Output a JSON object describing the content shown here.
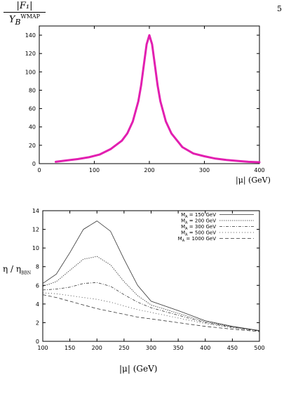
{
  "page_number": "5",
  "chart_data": [
    {
      "type": "line",
      "ylabel_numerator": "|F₁|",
      "ylabel_denominator": "Y",
      "ylabel_den_sub": "B",
      "ylabel_den_sup": "WMAP",
      "xlabel": "|μ| (GeV)",
      "xlim": [
        0,
        400
      ],
      "ylim": [
        0,
        150
      ],
      "xticks": [
        0,
        100,
        200,
        300,
        400
      ],
      "yticks": [
        0,
        20,
        40,
        60,
        80,
        100,
        120,
        140
      ],
      "grid": false,
      "legend": "none",
      "color": "#e21fb0",
      "series": [
        {
          "x": [
            30,
            50,
            70,
            90,
            110,
            130,
            150,
            160,
            170,
            180,
            185,
            190,
            195,
            200,
            205,
            210,
            215,
            220,
            230,
            240,
            260,
            280,
            300,
            320,
            340,
            360,
            380,
            400
          ],
          "y": [
            2,
            3.5,
            5,
            7,
            10,
            16,
            25,
            33,
            46,
            68,
            85,
            108,
            130,
            140,
            130,
            108,
            85,
            68,
            46,
            33,
            18,
            11,
            8,
            5.5,
            4,
            3,
            2,
            1.5
          ]
        }
      ]
    },
    {
      "type": "line",
      "ylabel_main": "η / η",
      "ylabel_sub": "BBN",
      "xlabel": "|μ|  (GeV)",
      "xlim": [
        100,
        500
      ],
      "ylim": [
        0,
        14
      ],
      "xticks": [
        100,
        150,
        200,
        250,
        300,
        350,
        400,
        450,
        500
      ],
      "yticks": [
        0,
        2,
        4,
        6,
        8,
        10,
        12,
        14
      ],
      "grid": false,
      "legend": "top-right",
      "series": [
        {
          "name_main": "M",
          "name_sub": "A",
          "name_rest": " = 150 GeV",
          "x": [
            100,
            125,
            150,
            175,
            200,
            225,
            250,
            275,
            300,
            350,
            400,
            450,
            500
          ],
          "y": [
            6.2,
            7.2,
            9.5,
            12.0,
            12.9,
            11.8,
            8.8,
            6.0,
            4.3,
            3.3,
            2.2,
            1.6,
            1.15
          ]
        },
        {
          "name_main": "M",
          "name_sub": "A",
          "name_rest": " = 200 GeV",
          "x": [
            100,
            125,
            150,
            175,
            200,
            225,
            250,
            275,
            300,
            350,
            400,
            450,
            500
          ],
          "y": [
            5.9,
            6.4,
            7.6,
            8.8,
            9.1,
            8.2,
            6.4,
            4.9,
            3.9,
            3.0,
            2.1,
            1.55,
            1.15
          ]
        },
        {
          "name_main": "M",
          "name_sub": "A",
          "name_rest": " = 300 GeV",
          "x": [
            100,
            125,
            150,
            175,
            200,
            225,
            250,
            275,
            300,
            350,
            400,
            450,
            500
          ],
          "y": [
            5.5,
            5.6,
            5.8,
            6.2,
            6.3,
            5.9,
            5.0,
            4.2,
            3.6,
            2.8,
            2.0,
            1.5,
            1.1
          ]
        },
        {
          "name_main": "M",
          "name_sub": "A",
          "name_rest": " = 500 GeV",
          "x": [
            100,
            125,
            150,
            175,
            200,
            225,
            250,
            275,
            300,
            350,
            400,
            450,
            500
          ],
          "y": [
            5.2,
            5.1,
            4.9,
            4.7,
            4.5,
            4.2,
            3.8,
            3.4,
            3.1,
            2.5,
            1.9,
            1.45,
            1.1
          ]
        },
        {
          "name_main": "M",
          "name_sub": "A",
          "name_rest": " = 1000 GeV",
          "x": [
            100,
            125,
            150,
            175,
            200,
            225,
            250,
            275,
            300,
            350,
            400,
            450,
            500
          ],
          "y": [
            5.0,
            4.7,
            4.3,
            3.9,
            3.5,
            3.2,
            2.9,
            2.6,
            2.4,
            2.0,
            1.6,
            1.3,
            1.05
          ]
        }
      ]
    }
  ]
}
